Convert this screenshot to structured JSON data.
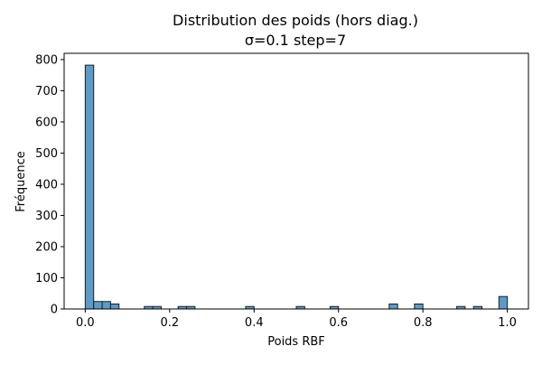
{
  "chart_data": {
    "type": "bar",
    "title_line1": "Distribution des poids (hors diag.)",
    "title_line2": "σ=0.1 step=7",
    "xlabel": "Poids RBF",
    "ylabel": "Fréquence",
    "xlim": [
      -0.05,
      1.05
    ],
    "ylim": [
      0,
      820
    ],
    "xticks": [
      0.0,
      0.2,
      0.4,
      0.6,
      0.8,
      1.0
    ],
    "xtick_labels": [
      "0.0",
      "0.2",
      "0.4",
      "0.6",
      "0.8",
      "1.0"
    ],
    "yticks": [
      0,
      100,
      200,
      300,
      400,
      500,
      600,
      700,
      800
    ],
    "ytick_labels": [
      "0",
      "100",
      "200",
      "300",
      "400",
      "500",
      "600",
      "700",
      "800"
    ],
    "bin_width": 0.02,
    "bins": [
      {
        "x0": 0.0,
        "count": 782
      },
      {
        "x0": 0.02,
        "count": 24
      },
      {
        "x0": 0.04,
        "count": 24
      },
      {
        "x0": 0.06,
        "count": 16
      },
      {
        "x0": 0.14,
        "count": 8
      },
      {
        "x0": 0.16,
        "count": 8
      },
      {
        "x0": 0.22,
        "count": 8
      },
      {
        "x0": 0.24,
        "count": 8
      },
      {
        "x0": 0.38,
        "count": 8
      },
      {
        "x0": 0.5,
        "count": 8
      },
      {
        "x0": 0.58,
        "count": 8
      },
      {
        "x0": 0.72,
        "count": 16
      },
      {
        "x0": 0.78,
        "count": 16
      },
      {
        "x0": 0.88,
        "count": 8
      },
      {
        "x0": 0.92,
        "count": 8
      },
      {
        "x0": 0.98,
        "count": 40
      }
    ],
    "bar_color": "#5b9bc8",
    "bar_edge_color": "#1f1f1f",
    "grid": false,
    "legend": "none"
  }
}
